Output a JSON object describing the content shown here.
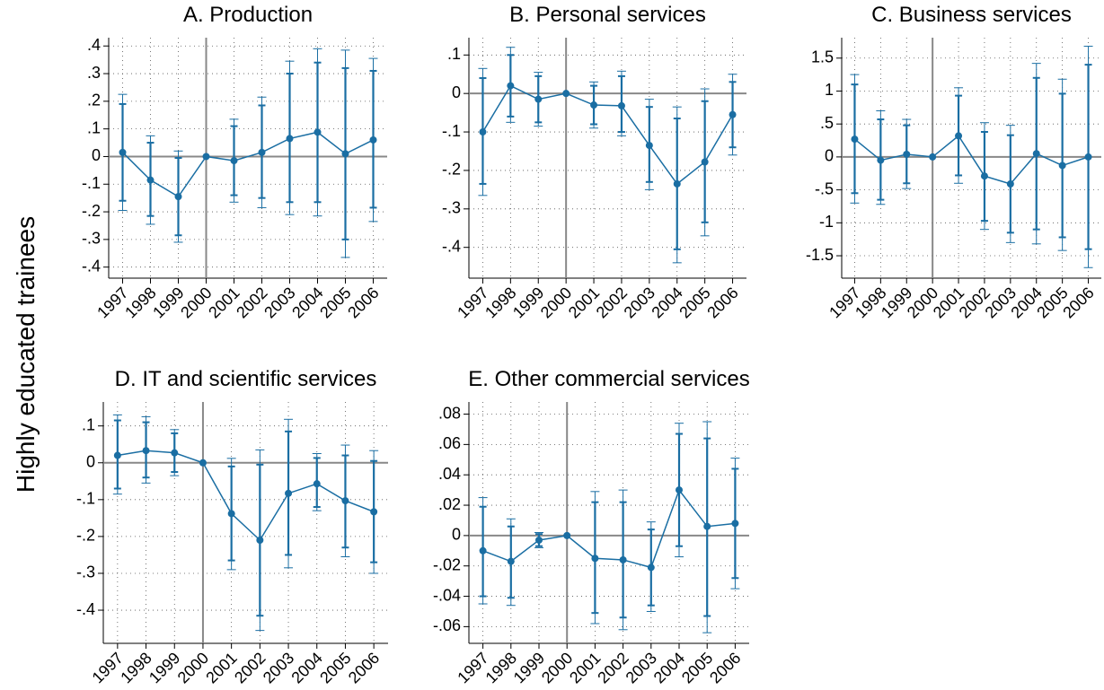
{
  "ylabel": "Highly educated trainees",
  "chart_data": [
    {
      "type": "line",
      "title": "A. Production",
      "color": "#1a6ea3",
      "grid": true,
      "reference_x": "2000",
      "reference_y": 0,
      "categories": [
        "1997",
        "1998",
        "1999",
        "2000",
        "2001",
        "2002",
        "2003",
        "2004",
        "2005",
        "2006"
      ],
      "values": [
        0.015,
        -0.085,
        -0.145,
        0,
        -0.015,
        0.015,
        0.065,
        0.088,
        0.01,
        0.06
      ],
      "ci95": [
        [
          -0.195,
          0.225
        ],
        [
          -0.245,
          0.075
        ],
        [
          -0.31,
          0.02
        ],
        null,
        [
          -0.165,
          0.135
        ],
        [
          -0.185,
          0.215
        ],
        [
          -0.21,
          0.345
        ],
        [
          -0.215,
          0.39
        ],
        [
          -0.365,
          0.385
        ],
        [
          -0.235,
          0.355
        ]
      ],
      "ci90": [
        [
          -0.16,
          0.19
        ],
        [
          -0.215,
          0.05
        ],
        [
          -0.285,
          -0.005
        ],
        null,
        [
          -0.14,
          0.11
        ],
        [
          -0.15,
          0.185
        ],
        [
          -0.165,
          0.3
        ],
        [
          -0.165,
          0.34
        ],
        [
          -0.3,
          0.32
        ],
        [
          -0.185,
          0.31
        ]
      ],
      "ylim": [
        -0.44,
        0.43
      ],
      "yticks": [
        {
          "value": 0.4,
          "label": ".4"
        },
        {
          "value": 0.3,
          "label": ".3"
        },
        {
          "value": 0.2,
          "label": ".2"
        },
        {
          "value": 0.1,
          "label": ".1"
        },
        0,
        {
          "value": -0.1,
          "label": "-.1"
        },
        {
          "value": -0.2,
          "label": "-.2"
        },
        {
          "value": -0.3,
          "label": "-.3"
        },
        {
          "value": -0.4,
          "label": "-.4"
        }
      ]
    },
    {
      "type": "line",
      "title": "B. Personal services",
      "color": "#1a6ea3",
      "grid": true,
      "reference_x": "2000",
      "reference_y": 0,
      "categories": [
        "1997",
        "1998",
        "1999",
        "2000",
        "2001",
        "2002",
        "2003",
        "2004",
        "2005",
        "2006"
      ],
      "values": [
        -0.1,
        0.02,
        -0.015,
        0,
        -0.03,
        -0.032,
        -0.135,
        -0.235,
        -0.178,
        -0.055
      ],
      "ci95": [
        [
          -0.265,
          0.065
        ],
        [
          -0.075,
          0.12
        ],
        [
          -0.085,
          0.055
        ],
        null,
        [
          -0.09,
          0.03
        ],
        [
          -0.11,
          0.058
        ],
        [
          -0.25,
          -0.015
        ],
        [
          -0.44,
          -0.035
        ],
        [
          -0.37,
          0.012
        ],
        [
          -0.16,
          0.05
        ]
      ],
      "ci90": [
        [
          -0.235,
          0.04
        ],
        [
          -0.06,
          0.1
        ],
        [
          -0.075,
          0.045
        ],
        null,
        [
          -0.08,
          0.02
        ],
        [
          -0.1,
          0.045
        ],
        [
          -0.23,
          -0.035
        ],
        [
          -0.405,
          -0.065
        ],
        [
          -0.335,
          -0.02
        ],
        [
          -0.14,
          0.03
        ]
      ],
      "ylim": [
        -0.48,
        0.145
      ],
      "yticks": [
        {
          "value": 0.1,
          "label": ".1"
        },
        0,
        {
          "value": -0.1,
          "label": "-.1"
        },
        {
          "value": -0.2,
          "label": "-.2"
        },
        {
          "value": -0.3,
          "label": "-.3"
        },
        {
          "value": -0.4,
          "label": "-.4"
        }
      ]
    },
    {
      "type": "line",
      "title": "C. Business services",
      "color": "#1a6ea3",
      "grid": true,
      "reference_x": "2000",
      "reference_y": 0,
      "categories": [
        "1997",
        "1998",
        "1999",
        "2000",
        "2001",
        "2002",
        "2003",
        "2004",
        "2005",
        "2006"
      ],
      "values": [
        0.27,
        -0.05,
        0.04,
        0,
        0.32,
        -0.29,
        -0.41,
        0.05,
        -0.13,
        0
      ],
      "ci95": [
        [
          -0.7,
          1.25
        ],
        [
          -0.72,
          0.7
        ],
        [
          -0.48,
          0.57
        ],
        null,
        [
          -0.4,
          1.05
        ],
        [
          -1.1,
          0.52
        ],
        [
          -1.3,
          0.48
        ],
        [
          -1.32,
          1.42
        ],
        [
          -1.42,
          1.18
        ],
        [
          -1.68,
          1.68
        ]
      ],
      "ci90": [
        [
          -0.55,
          1.1
        ],
        [
          -0.65,
          0.57
        ],
        [
          -0.4,
          0.48
        ],
        null,
        [
          -0.28,
          0.93
        ],
        [
          -0.97,
          0.38
        ],
        [
          -1.15,
          0.33
        ],
        [
          -1.1,
          1.2
        ],
        [
          -1.22,
          0.96
        ],
        [
          -1.4,
          1.4
        ]
      ],
      "ylim": [
        -1.84,
        1.81
      ],
      "yticks": [
        1.5,
        1,
        {
          "value": 0.5,
          "label": ".5"
        },
        0,
        {
          "value": -0.5,
          "label": "-.5"
        },
        -1,
        -1.5
      ]
    },
    {
      "type": "line",
      "title": "D. IT and scientific services",
      "color": "#1a6ea3",
      "grid": true,
      "reference_x": "2000",
      "reference_y": 0,
      "categories": [
        "1997",
        "1998",
        "1999",
        "2000",
        "2001",
        "2002",
        "2003",
        "2004",
        "2005",
        "2006"
      ],
      "values": [
        0.02,
        0.033,
        0.027,
        0,
        -0.138,
        -0.21,
        -0.083,
        -0.057,
        -0.103,
        -0.133
      ],
      "ci95": [
        [
          -0.085,
          0.13
        ],
        [
          -0.055,
          0.125
        ],
        [
          -0.035,
          0.09
        ],
        null,
        [
          -0.29,
          0.012
        ],
        [
          -0.455,
          0.035
        ],
        [
          -0.285,
          0.118
        ],
        [
          -0.13,
          0.025
        ],
        [
          -0.255,
          0.048
        ],
        [
          -0.3,
          0.033
        ]
      ],
      "ci90": [
        [
          -0.07,
          0.115
        ],
        [
          -0.04,
          0.11
        ],
        [
          -0.025,
          0.08
        ],
        null,
        [
          -0.265,
          -0.01
        ],
        [
          -0.415,
          -0.005
        ],
        [
          -0.25,
          0.085
        ],
        [
          -0.12,
          0.013
        ],
        [
          -0.23,
          0.02
        ],
        [
          -0.27,
          0.005
        ]
      ],
      "ylim": [
        -0.49,
        0.165
      ],
      "yticks": [
        {
          "value": 0.1,
          "label": ".1"
        },
        0,
        {
          "value": -0.1,
          "label": "-.1"
        },
        {
          "value": -0.2,
          "label": "-.2"
        },
        {
          "value": -0.3,
          "label": "-.3"
        },
        {
          "value": -0.4,
          "label": "-.4"
        }
      ]
    },
    {
      "type": "line",
      "title": "E. Other commercial services",
      "color": "#1a6ea3",
      "grid": true,
      "reference_x": "2000",
      "reference_y": 0,
      "categories": [
        "1997",
        "1998",
        "1999",
        "2000",
        "2001",
        "2002",
        "2003",
        "2004",
        "2005",
        "2006"
      ],
      "values": [
        -0.01,
        -0.017,
        -0.003,
        0,
        -0.015,
        -0.016,
        -0.021,
        0.03,
        0.006,
        0.008
      ],
      "ci95": [
        [
          -0.045,
          0.025
        ],
        [
          -0.046,
          0.011
        ],
        [
          -0.008,
          0.002
        ],
        null,
        [
          -0.058,
          0.029
        ],
        [
          -0.062,
          0.03
        ],
        [
          -0.05,
          0.009
        ],
        [
          -0.014,
          0.074
        ],
        [
          -0.064,
          0.075
        ],
        [
          -0.035,
          0.051
        ]
      ],
      "ci90": [
        [
          -0.04,
          0.019
        ],
        [
          -0.041,
          0.006
        ],
        [
          -0.007,
          0.001
        ],
        null,
        [
          -0.051,
          0.022
        ],
        [
          -0.054,
          0.022
        ],
        [
          -0.046,
          0.004
        ],
        [
          -0.007,
          0.067
        ],
        [
          -0.053,
          0.064
        ],
        [
          -0.028,
          0.044
        ]
      ],
      "ylim": [
        -0.071,
        0.088
      ],
      "yticks": [
        {
          "value": 0.08,
          "label": ".08"
        },
        {
          "value": 0.06,
          "label": ".06"
        },
        {
          "value": 0.04,
          "label": ".04"
        },
        {
          "value": 0.02,
          "label": ".02"
        },
        0,
        {
          "value": -0.02,
          "label": "-.02"
        },
        {
          "value": -0.04,
          "label": "-.04"
        },
        {
          "value": -0.06,
          "label": "-.06"
        }
      ]
    }
  ]
}
